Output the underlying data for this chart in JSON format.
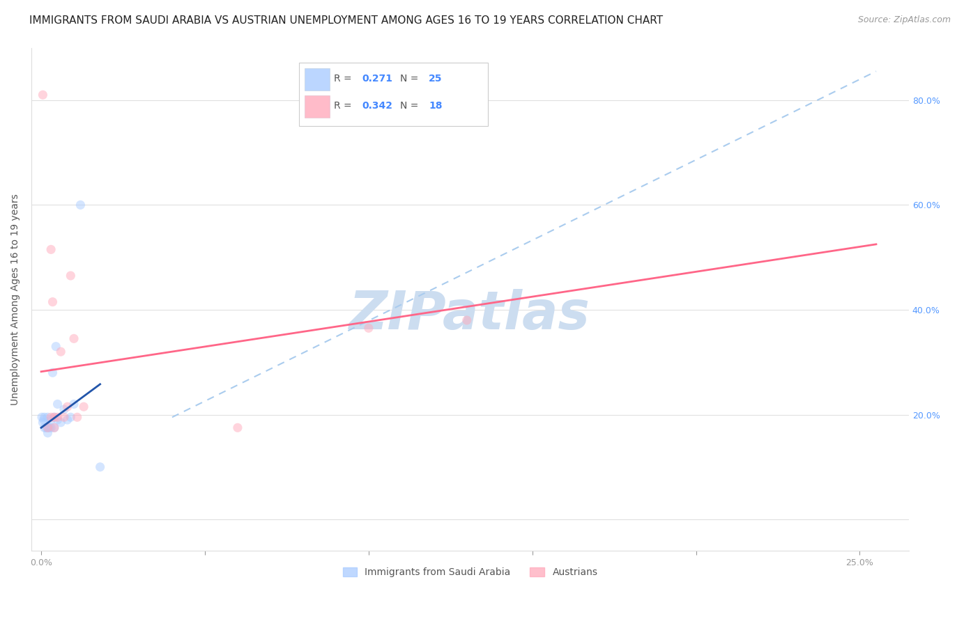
{
  "title": "IMMIGRANTS FROM SAUDI ARABIA VS AUSTRIAN UNEMPLOYMENT AMONG AGES 16 TO 19 YEARS CORRELATION CHART",
  "source": "Source: ZipAtlas.com",
  "ylabel": "Unemployment Among Ages 16 to 19 years",
  "xlim": [
    -0.003,
    0.265
  ],
  "ylim": [
    -0.06,
    0.9
  ],
  "background_color": "#ffffff",
  "grid_color": "#e0e0e0",
  "blue_color": "#aaccff",
  "pink_color": "#ffaabc",
  "blue_line_color": "#2255aa",
  "pink_line_color": "#ff6688",
  "dashed_line_color": "#aaccee",
  "watermark_color": "#ccddf0",
  "legend_label1": "Immigrants from Saudi Arabia",
  "legend_label2": "Austrians",
  "R1": "0.271",
  "N1": "25",
  "R2": "0.342",
  "N2": "18",
  "blue_scatter_x": [
    0.0002,
    0.0005,
    0.0008,
    0.001,
    0.001,
    0.0015,
    0.002,
    0.002,
    0.002,
    0.0025,
    0.003,
    0.003,
    0.0035,
    0.004,
    0.004,
    0.0045,
    0.005,
    0.005,
    0.006,
    0.007,
    0.008,
    0.009,
    0.01,
    0.012,
    0.018
  ],
  "blue_scatter_y": [
    0.195,
    0.185,
    0.19,
    0.175,
    0.195,
    0.175,
    0.175,
    0.195,
    0.165,
    0.175,
    0.175,
    0.19,
    0.28,
    0.175,
    0.195,
    0.33,
    0.19,
    0.22,
    0.185,
    0.21,
    0.19,
    0.195,
    0.22,
    0.6,
    0.1
  ],
  "pink_scatter_x": [
    0.0005,
    0.002,
    0.003,
    0.0035,
    0.004,
    0.005,
    0.006,
    0.007,
    0.008,
    0.009,
    0.01,
    0.011,
    0.013,
    0.06,
    0.1,
    0.13,
    0.004,
    0.003
  ],
  "pink_scatter_y": [
    0.81,
    0.175,
    0.195,
    0.415,
    0.175,
    0.195,
    0.32,
    0.195,
    0.215,
    0.465,
    0.345,
    0.195,
    0.215,
    0.175,
    0.365,
    0.38,
    0.195,
    0.515
  ],
  "dashed_line_x0": 0.04,
  "dashed_line_y0": 0.195,
  "dashed_line_x1": 0.255,
  "dashed_line_y1": 0.855,
  "pink_line_x0": 0.0,
  "pink_line_y0": 0.282,
  "pink_line_x1": 0.255,
  "pink_line_y1": 0.525,
  "blue_line_x0": 0.0,
  "blue_line_y0": 0.175,
  "blue_line_x1": 0.018,
  "blue_line_y1": 0.258,
  "title_fontsize": 11,
  "source_fontsize": 9,
  "axis_label_fontsize": 10,
  "tick_fontsize": 9,
  "marker_size": 90,
  "marker_alpha": 0.5
}
